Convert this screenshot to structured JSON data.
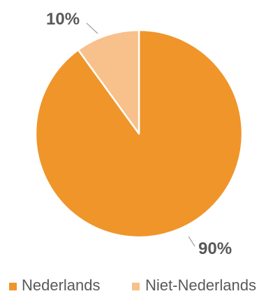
{
  "chart_data": {
    "type": "pie",
    "categories": [
      "Nederlands",
      "Niet-Nederlands"
    ],
    "values": [
      90,
      10
    ],
    "data_labels": [
      "90%",
      "10%"
    ],
    "colors": [
      "#F0952A",
      "#F8C08A"
    ],
    "start": "top",
    "direction": "clockwise",
    "legend_position": "bottom"
  }
}
